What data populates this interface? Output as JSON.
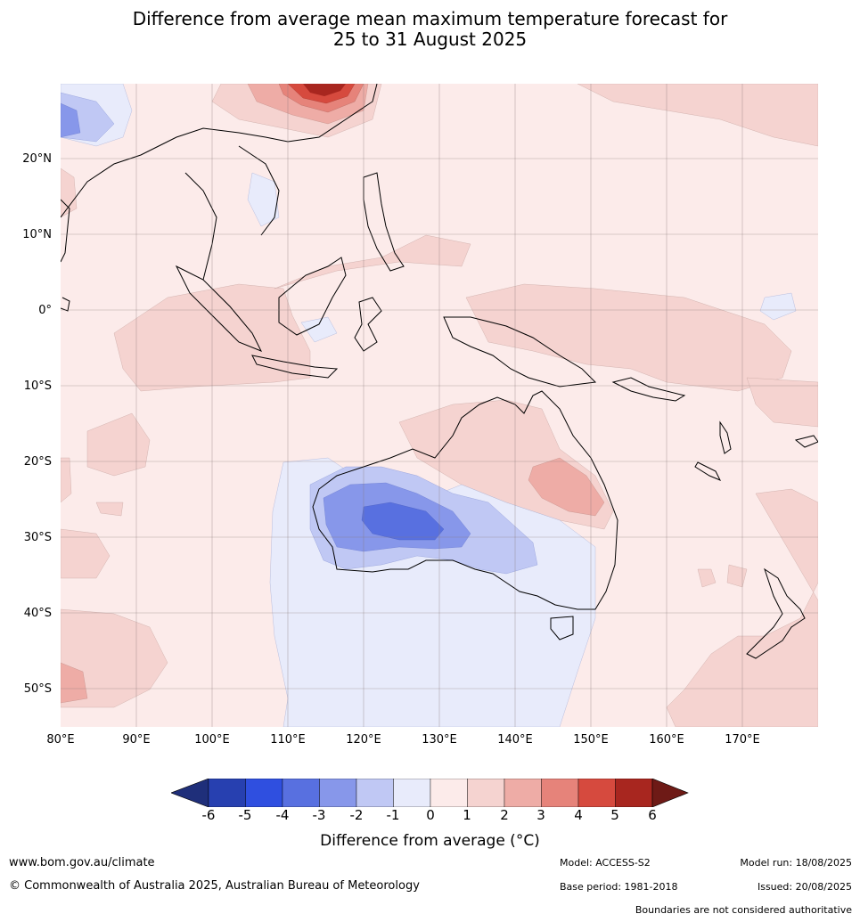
{
  "title_line1": "Difference from average mean maximum temperature forecast for",
  "title_line2": "25 to 31 August 2025",
  "lat_labels": [
    "20°N",
    "10°N",
    "0°",
    "10°S",
    "20°S",
    "30°S",
    "40°S",
    "50°S"
  ],
  "lon_labels": [
    "80°E",
    "90°E",
    "100°E",
    "110°E",
    "120°E",
    "130°E",
    "140°E",
    "150°E",
    "160°E",
    "170°E"
  ],
  "legend": {
    "ticks": [
      "-6",
      "-5",
      "-4",
      "-3",
      "-2",
      "-1",
      "0",
      "1",
      "2",
      "3",
      "4",
      "5",
      "6"
    ],
    "colors": [
      "#1f2f7a",
      "#2740b0",
      "#2f4fe0",
      "#5870e0",
      "#8797ea",
      "#c0c8f4",
      "#e8ebfb",
      "#fcebea",
      "#f5d3d0",
      "#eeaca6",
      "#e6837a",
      "#d64a3e",
      "#a8261f",
      "#6e1a16"
    ],
    "label": "Difference from average (",
    "label_unit": "°C)"
  },
  "footer": {
    "website": "www.bom.gov.au/climate",
    "copyright": "© Commonwealth of Australia 2025, Australian Bureau of Meteorology",
    "model": "Model: ACCESS-S2",
    "base_period": "Base period: 1981-2018",
    "model_run": "Model run: 18/08/2025",
    "issued": "Issued: 20/08/2025",
    "disclaimer": "Boundaries are not considered authoritative"
  }
}
